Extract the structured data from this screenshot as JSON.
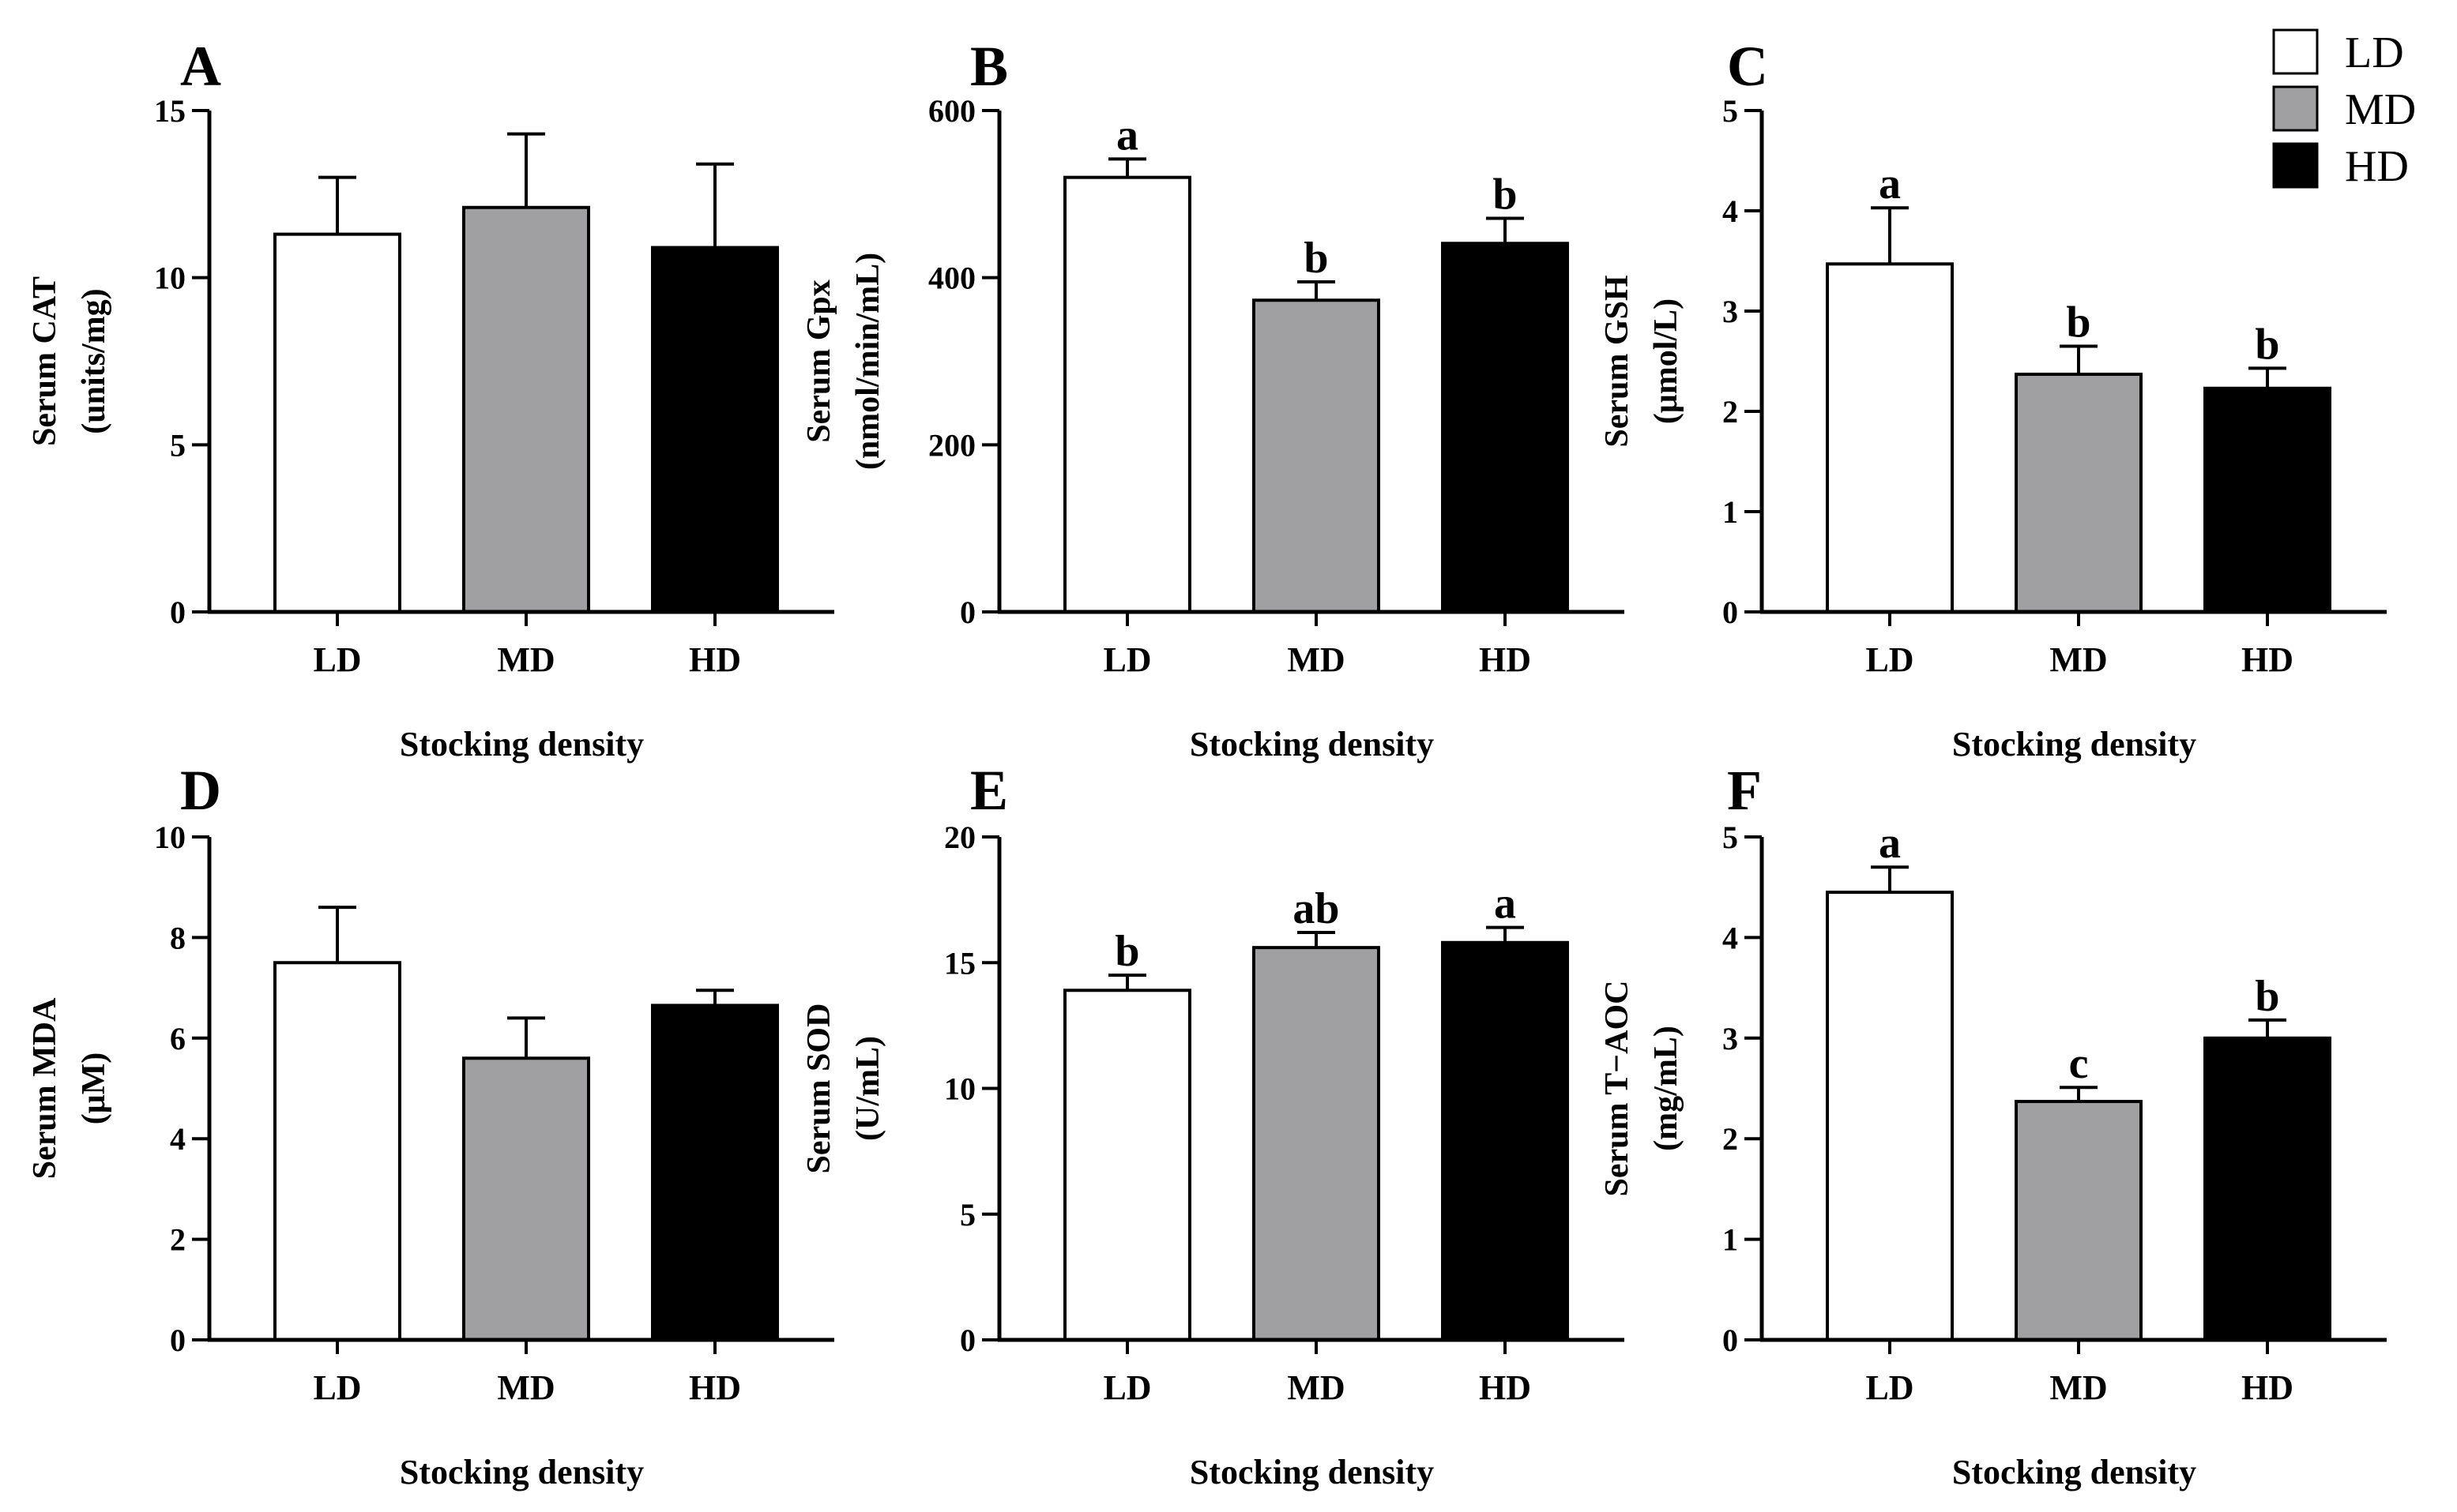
{
  "legend": {
    "entries": [
      {
        "label": "LD",
        "color": "#ffffff"
      },
      {
        "label": "MD",
        "color": "#a0a0a2"
      },
      {
        "label": "HD",
        "color": "#000000"
      }
    ]
  },
  "chart_data": [
    {
      "type": "bar",
      "panel": "A",
      "categories": [
        "LD",
        "MD",
        "HD"
      ],
      "xlabel": "Stocking density",
      "ylabel": [
        "Serum CAT",
        "(units/mg)"
      ],
      "ylim": [
        0,
        15
      ],
      "yticks": [
        0,
        5,
        10,
        15
      ],
      "values": [
        11.3,
        12.1,
        10.9
      ],
      "errors": [
        1.7,
        2.2,
        2.5
      ],
      "labels": [
        "",
        "",
        ""
      ],
      "colors": [
        "#ffffff",
        "#a0a0a2",
        "#000000"
      ]
    },
    {
      "type": "bar",
      "panel": "B",
      "categories": [
        "LD",
        "MD",
        "HD"
      ],
      "xlabel": "Stocking density",
      "ylabel": [
        "Serum Gpx",
        "(nmol/min/mL)"
      ],
      "ylim": [
        0,
        600
      ],
      "yticks": [
        0,
        200,
        400,
        600
      ],
      "values": [
        520,
        373,
        441
      ],
      "errors": [
        22,
        22,
        30
      ],
      "labels": [
        "a",
        "b",
        "b"
      ],
      "colors": [
        "#ffffff",
        "#a0a0a2",
        "#000000"
      ]
    },
    {
      "type": "bar",
      "panel": "C",
      "categories": [
        "LD",
        "MD",
        "HD"
      ],
      "xlabel": "Stocking density",
      "ylabel": [
        "Serum GSH",
        "(μmol/L)"
      ],
      "ylim": [
        0,
        5
      ],
      "yticks": [
        0,
        1,
        2,
        3,
        4,
        5
      ],
      "values": [
        3.47,
        2.37,
        2.23
      ],
      "errors": [
        0.56,
        0.28,
        0.2
      ],
      "labels": [
        "a",
        "b",
        "b"
      ],
      "colors": [
        "#ffffff",
        "#a0a0a2",
        "#000000"
      ]
    },
    {
      "type": "bar",
      "panel": "D",
      "categories": [
        "LD",
        "MD",
        "HD"
      ],
      "xlabel": "Stocking density",
      "ylabel": [
        "Serum MDA",
        "(μM)"
      ],
      "ylim": [
        0,
        10
      ],
      "yticks": [
        0,
        2,
        4,
        6,
        8,
        10
      ],
      "values": [
        7.5,
        5.6,
        6.65
      ],
      "errors": [
        1.1,
        0.8,
        0.3
      ],
      "labels": [
        "",
        "",
        ""
      ],
      "colors": [
        "#ffffff",
        "#a0a0a2",
        "#000000"
      ]
    },
    {
      "type": "bar",
      "panel": "E",
      "categories": [
        "LD",
        "MD",
        "HD"
      ],
      "xlabel": "Stocking density",
      "ylabel": [
        "Serum SOD",
        "(U/mL)"
      ],
      "ylim": [
        0,
        20
      ],
      "yticks": [
        0,
        5,
        10,
        15,
        20
      ],
      "values": [
        13.9,
        15.6,
        15.8
      ],
      "errors": [
        0.6,
        0.6,
        0.6
      ],
      "labels": [
        "b",
        "ab",
        "a"
      ],
      "colors": [
        "#ffffff",
        "#a0a0a2",
        "#000000"
      ]
    },
    {
      "type": "bar",
      "panel": "F",
      "categories": [
        "LD",
        "MD",
        "HD"
      ],
      "xlabel": "Stocking density",
      "ylabel": [
        "Serum T−AOC",
        "(mg/mL)"
      ],
      "ylim": [
        0,
        5
      ],
      "yticks": [
        0,
        1,
        2,
        3,
        4,
        5
      ],
      "values": [
        4.45,
        2.37,
        3.0
      ],
      "errors": [
        0.25,
        0.14,
        0.18
      ],
      "labels": [
        "a",
        "c",
        "b"
      ],
      "colors": [
        "#ffffff",
        "#a0a0a2",
        "#000000"
      ]
    }
  ]
}
